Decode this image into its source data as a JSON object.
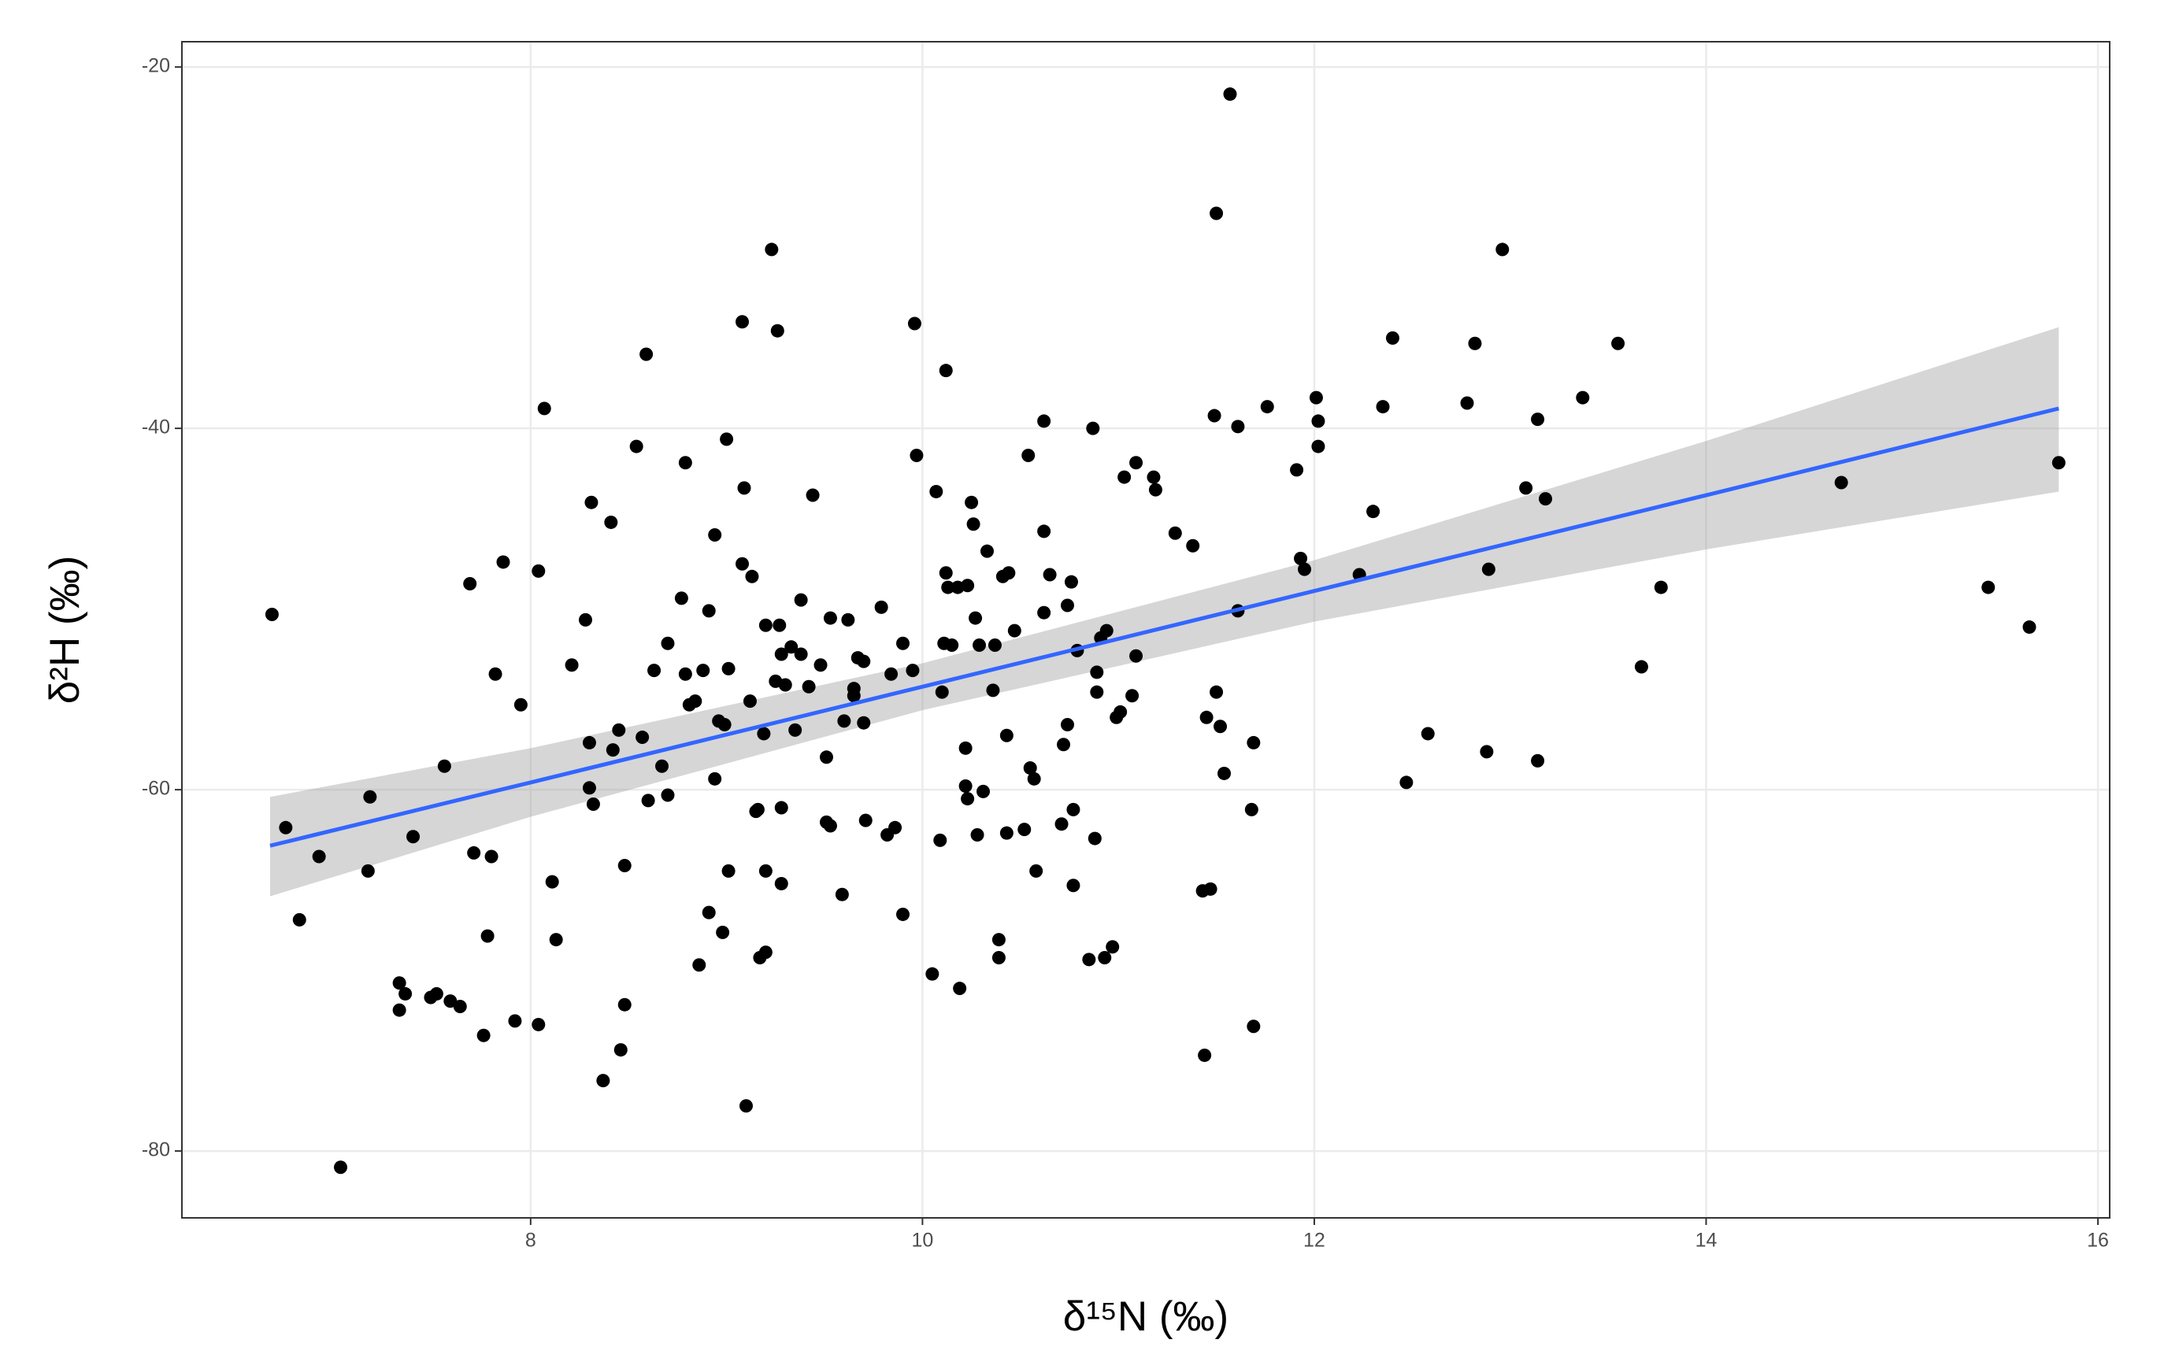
{
  "chart_data": {
    "type": "scatter",
    "x_label": "δ¹⁵N (‰)",
    "y_label": "δ²H (‰)",
    "color": "#000000",
    "xlim": [
      6.22,
      16.06
    ],
    "ylim": [
      -83.7,
      -18.6
    ],
    "xticks": [
      8,
      10,
      12,
      14,
      16
    ],
    "yticks": [
      -80,
      -60,
      -40,
      -20
    ],
    "grid": true,
    "x": [
      6.68,
      6.75,
      6.82,
      6.92,
      7.03,
      7.17,
      7.18,
      7.33,
      7.33,
      7.36,
      7.4,
      7.49,
      7.52,
      7.56,
      7.59,
      7.64,
      7.69,
      7.71,
      7.76,
      7.78,
      7.8,
      7.82,
      7.86,
      7.92,
      7.95,
      8.04,
      8.04,
      8.07,
      8.11,
      8.13,
      8.21,
      8.28,
      8.3,
      8.3,
      8.31,
      8.32,
      8.37,
      8.41,
      8.42,
      8.45,
      8.46,
      8.48,
      8.48,
      8.54,
      8.57,
      8.59,
      8.6,
      8.63,
      8.67,
      8.7,
      8.7,
      8.77,
      8.79,
      8.79,
      8.81,
      8.84,
      8.86,
      8.88,
      8.91,
      8.91,
      8.94,
      8.94,
      8.96,
      8.98,
      8.99,
      9.0,
      9.01,
      9.01,
      9.08,
      9.08,
      9.09,
      9.1,
      9.12,
      9.13,
      9.15,
      9.16,
      9.17,
      9.19,
      9.2,
      9.2,
      9.2,
      9.23,
      9.25,
      9.26,
      9.27,
      9.28,
      9.28,
      9.28,
      9.3,
      9.33,
      9.35,
      9.38,
      9.38,
      9.42,
      9.44,
      9.48,
      9.51,
      9.51,
      9.53,
      9.53,
      9.59,
      9.6,
      9.62,
      9.65,
      9.65,
      9.67,
      9.7,
      9.7,
      9.71,
      9.79,
      9.82,
      9.84,
      9.86,
      9.9,
      9.9,
      9.95,
      9.96,
      9.97,
      10.05,
      10.07,
      10.09,
      10.1,
      10.11,
      10.12,
      10.12,
      10.13,
      10.15,
      10.18,
      10.19,
      10.22,
      10.22,
      10.23,
      10.23,
      10.25,
      10.26,
      10.27,
      10.28,
      10.29,
      10.31,
      10.33,
      10.36,
      10.37,
      10.39,
      10.39,
      10.41,
      10.43,
      10.43,
      10.44,
      10.47,
      10.52,
      10.54,
      10.55,
      10.57,
      10.58,
      10.62,
      10.62,
      10.62,
      10.65,
      10.71,
      10.72,
      10.74,
      10.74,
      10.76,
      10.77,
      10.77,
      10.79,
      10.85,
      10.87,
      10.88,
      10.89,
      10.89,
      10.91,
      10.93,
      10.94,
      10.97,
      10.99,
      11.01,
      11.03,
      11.07,
      11.09,
      11.09,
      11.18,
      11.19,
      11.29,
      11.38,
      11.43,
      11.44,
      11.45,
      11.47,
      11.49,
      11.5,
      11.5,
      11.52,
      11.54,
      11.57,
      11.61,
      11.61,
      11.68,
      11.69,
      11.69,
      11.76,
      11.91,
      11.93,
      11.95,
      12.01,
      12.02,
      12.02,
      12.23,
      12.3,
      12.35,
      12.4,
      12.47,
      12.58,
      12.78,
      12.82,
      12.88,
      12.89,
      12.96,
      13.08,
      13.14,
      13.14,
      13.18,
      13.37,
      13.55,
      13.67,
      13.77,
      14.69,
      15.44,
      15.65,
      15.8
    ],
    "values": [
      -50.3,
      -62.1,
      -67.2,
      -63.7,
      -80.9,
      -64.5,
      -60.4,
      -70.7,
      -72.2,
      -71.3,
      -62.6,
      -71.5,
      -71.3,
      -58.7,
      -71.7,
      -72.0,
      -48.6,
      -63.5,
      -73.6,
      -68.1,
      -63.7,
      -53.6,
      -47.4,
      -72.8,
      -55.3,
      -73.0,
      -47.9,
      -38.9,
      -65.1,
      -68.3,
      -53.1,
      -50.6,
      -57.4,
      -59.9,
      -44.1,
      -60.8,
      -76.1,
      -45.2,
      -57.8,
      -56.7,
      -74.4,
      -64.2,
      -71.9,
      -41.0,
      -57.1,
      -35.9,
      -60.6,
      -53.4,
      -58.7,
      -51.9,
      -60.3,
      -49.4,
      -41.9,
      -53.6,
      -55.3,
      -55.1,
      -69.7,
      -53.4,
      -50.1,
      -66.8,
      -45.9,
      -59.4,
      -56.2,
      -67.9,
      -56.4,
      -40.6,
      -53.3,
      -64.5,
      -47.5,
      -34.1,
      -43.3,
      -77.5,
      -55.1,
      -48.2,
      -61.2,
      -61.1,
      -69.3,
      -56.9,
      -69.0,
      -50.9,
      -64.5,
      -30.1,
      -54.0,
      -34.6,
      -50.9,
      -61.0,
      -65.2,
      -52.5,
      -54.2,
      -52.1,
      -56.7,
      -52.5,
      -49.5,
      -54.3,
      -43.7,
      -53.1,
      -58.2,
      -61.8,
      -62.0,
      -50.5,
      -65.8,
      -56.2,
      -50.6,
      -54.4,
      -54.8,
      -52.7,
      -52.9,
      -56.3,
      -61.7,
      -49.9,
      -62.5,
      -53.6,
      -62.1,
      -51.9,
      -66.9,
      -53.4,
      -34.2,
      -41.5,
      -70.2,
      -43.5,
      -62.8,
      -54.6,
      -51.9,
      -36.8,
      -48.0,
      -48.8,
      -52.0,
      -48.8,
      -71.0,
      -57.7,
      -59.8,
      -48.7,
      -60.5,
      -44.1,
      -45.3,
      -50.5,
      -62.5,
      -52.0,
      -60.1,
      -46.8,
      -54.5,
      -52.0,
      -68.3,
      -69.3,
      -48.2,
      -62.4,
      -57.0,
      -48.0,
      -51.2,
      -62.2,
      -41.5,
      -58.8,
      -59.4,
      -64.5,
      -50.2,
      -39.6,
      -45.7,
      -48.1,
      -61.9,
      -57.5,
      -56.4,
      -49.8,
      -48.5,
      -61.1,
      -65.3,
      -52.3,
      -69.4,
      -40.0,
      -62.7,
      -54.6,
      -53.5,
      -51.6,
      -69.3,
      -51.2,
      -68.7,
      -56.0,
      -55.7,
      -42.7,
      -54.8,
      -52.6,
      -41.9,
      -42.7,
      -43.4,
      -45.8,
      -46.5,
      -65.6,
      -74.7,
      -56.0,
      -65.5,
      -39.3,
      -28.1,
      -54.6,
      -56.5,
      -59.1,
      -21.5,
      -50.1,
      -39.9,
      -61.1,
      -73.1,
      -57.4,
      -38.8,
      -42.3,
      -47.2,
      -47.8,
      -38.3,
      -39.6,
      -41.0,
      -48.1,
      -44.6,
      -38.8,
      -35.0,
      -59.6,
      -56.9,
      -38.6,
      -35.3,
      -57.9,
      -47.8,
      -30.1,
      -43.3,
      -39.5,
      -58.4,
      -43.9,
      -38.3,
      -35.3,
      -53.2,
      -48.8,
      -43.0,
      -48.8,
      -51.0,
      -41.9
    ],
    "fit": {
      "color": "#3366ff",
      "band_color": "#999999",
      "x": [
        6.67,
        8,
        10,
        12,
        14,
        15.8
      ],
      "values": [
        -63.1,
        -59.6,
        -54.3,
        -49.0,
        -43.7,
        -38.9
      ],
      "lower": [
        -65.9,
        -61.5,
        -55.6,
        -50.7,
        -46.7,
        -43.5
      ],
      "upper": [
        -60.4,
        -57.7,
        -53.0,
        -47.3,
        -40.7,
        -34.4
      ]
    }
  }
}
